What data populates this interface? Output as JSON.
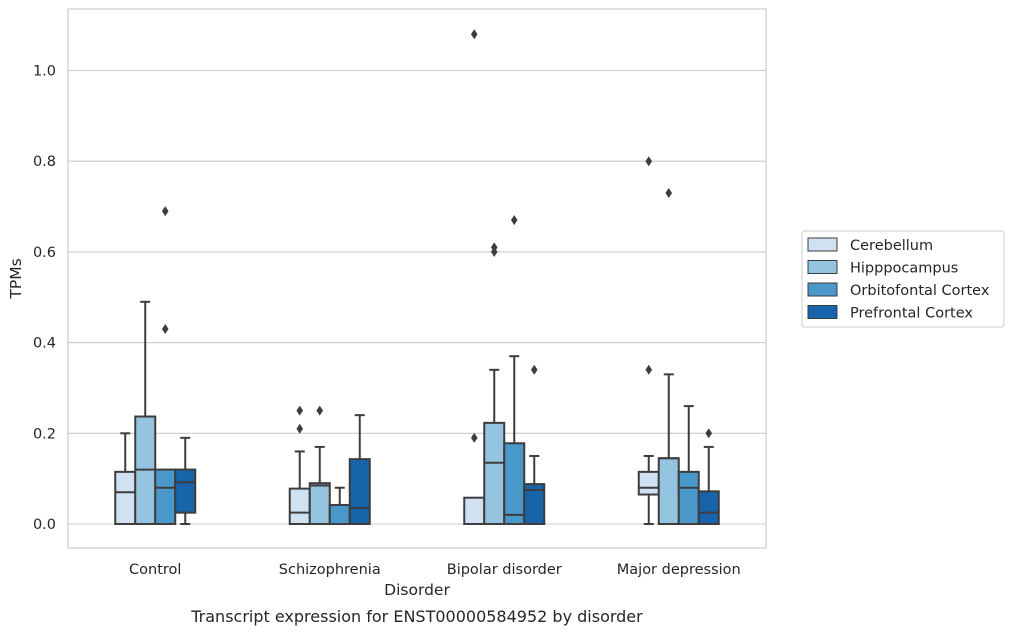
{
  "chart_data": {
    "type": "box",
    "title": "",
    "caption": "Transcript expression for ENST00000584952 by disorder",
    "xlabel": "Disorder",
    "ylabel": "TPMs",
    "ylim": [
      -0.052,
      1.14
    ],
    "yticks": [
      0.0,
      0.2,
      0.4,
      0.6,
      0.8,
      1.0
    ],
    "ytick_labels": [
      "0.0",
      "0.2",
      "0.4",
      "0.6",
      "0.8",
      "1.0"
    ],
    "grid": "horizontal",
    "legend_position": "right",
    "categories": [
      "Control",
      "Schizophrenia",
      "Bipolar disorder",
      "Major depression"
    ],
    "series": [
      {
        "name": "Cerebellum",
        "color": "#d0e1f2",
        "boxes": [
          {
            "whislo": 0.0,
            "q1": 0.0,
            "med": 0.07,
            "q3": 0.115,
            "whishi": 0.2,
            "fliers": []
          },
          {
            "whislo": 0.0,
            "q1": 0.0,
            "med": 0.025,
            "q3": 0.078,
            "whishi": 0.16,
            "fliers": [
              0.21,
              0.25
            ]
          },
          {
            "whislo": 0.0,
            "q1": 0.0,
            "med": 0.0,
            "q3": 0.058,
            "whishi": 0.058,
            "fliers": [
              0.19,
              1.08
            ]
          },
          {
            "whislo": 0.0,
            "q1": 0.065,
            "med": 0.08,
            "q3": 0.115,
            "whishi": 0.15,
            "fliers": [
              0.34,
              0.8
            ]
          }
        ]
      },
      {
        "name": "Hipppocampus",
        "color": "#94c4df",
        "boxes": [
          {
            "whislo": 0.0,
            "q1": 0.0,
            "med": 0.12,
            "q3": 0.237,
            "whishi": 0.49,
            "fliers": []
          },
          {
            "whislo": 0.0,
            "q1": 0.0,
            "med": 0.085,
            "q3": 0.09,
            "whishi": 0.17,
            "fliers": [
              0.25
            ]
          },
          {
            "whislo": 0.0,
            "q1": 0.0,
            "med": 0.135,
            "q3": 0.223,
            "whishi": 0.34,
            "fliers": [
              0.6,
              0.61
            ]
          },
          {
            "whislo": 0.0,
            "q1": 0.0,
            "med": 0.145,
            "q3": 0.145,
            "whishi": 0.33,
            "fliers": [
              0.73
            ]
          }
        ]
      },
      {
        "name": "Orbitofontal Cortex",
        "color": "#4a98c9",
        "boxes": [
          {
            "whislo": 0.0,
            "q1": 0.0,
            "med": 0.08,
            "q3": 0.12,
            "whishi": 0.12,
            "fliers": [
              0.43,
              0.69
            ]
          },
          {
            "whislo": 0.0,
            "q1": 0.0,
            "med": 0.042,
            "q3": 0.042,
            "whishi": 0.08,
            "fliers": []
          },
          {
            "whislo": 0.0,
            "q1": 0.0,
            "med": 0.02,
            "q3": 0.178,
            "whishi": 0.37,
            "fliers": [
              0.67
            ]
          },
          {
            "whislo": 0.0,
            "q1": 0.0,
            "med": 0.08,
            "q3": 0.115,
            "whishi": 0.26,
            "fliers": []
          }
        ]
      },
      {
        "name": "Prefrontal Cortex",
        "color": "#1764ab",
        "boxes": [
          {
            "whislo": 0.0,
            "q1": 0.025,
            "med": 0.092,
            "q3": 0.12,
            "whishi": 0.19,
            "fliers": []
          },
          {
            "whislo": 0.0,
            "q1": 0.0,
            "med": 0.035,
            "q3": 0.143,
            "whishi": 0.24,
            "fliers": []
          },
          {
            "whislo": 0.0,
            "q1": 0.0,
            "med": 0.075,
            "q3": 0.088,
            "whishi": 0.15,
            "fliers": [
              0.34
            ]
          },
          {
            "whislo": 0.0,
            "q1": 0.0,
            "med": 0.025,
            "q3": 0.072,
            "whishi": 0.17,
            "fliers": [
              0.2
            ]
          }
        ]
      }
    ]
  }
}
